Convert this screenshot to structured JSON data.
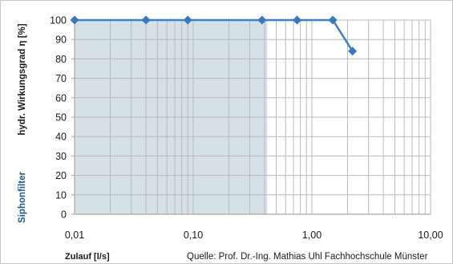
{
  "chart_data": {
    "type": "line",
    "x_scale": "log",
    "xlim": [
      0.01,
      10
    ],
    "ylim": [
      0,
      100
    ],
    "y_ticks": [
      0,
      10,
      20,
      30,
      40,
      50,
      60,
      70,
      80,
      90,
      100
    ],
    "x_ticks": [
      "0,01",
      "0,10",
      "1,00",
      "10,00"
    ],
    "x_tick_values": [
      0.01,
      0.1,
      1,
      10
    ],
    "ylabel_parts": [
      "Siphonfilter",
      "hydr. Wirkungsgrad η [%]"
    ],
    "xlabel": "Zulauf [l/s]",
    "source": "Quelle: Prof. Dr.-Ing. Mathias Uhl Fachhochschule Münster",
    "shaded_region_x": [
      0.01,
      0.42
    ],
    "grid": true,
    "series": [
      {
        "x": [
          0.01,
          0.04,
          0.09,
          0.38,
          0.75,
          1.5,
          2.2
        ],
        "y": [
          100,
          100,
          100,
          100,
          100,
          100,
          84
        ]
      }
    ],
    "colors": {
      "line": "#3f7fc4",
      "marker": "#3a78bd",
      "shade": "#d5e0e7",
      "grid": "#b9b9b9",
      "axis": "#a6a6a6"
    }
  }
}
